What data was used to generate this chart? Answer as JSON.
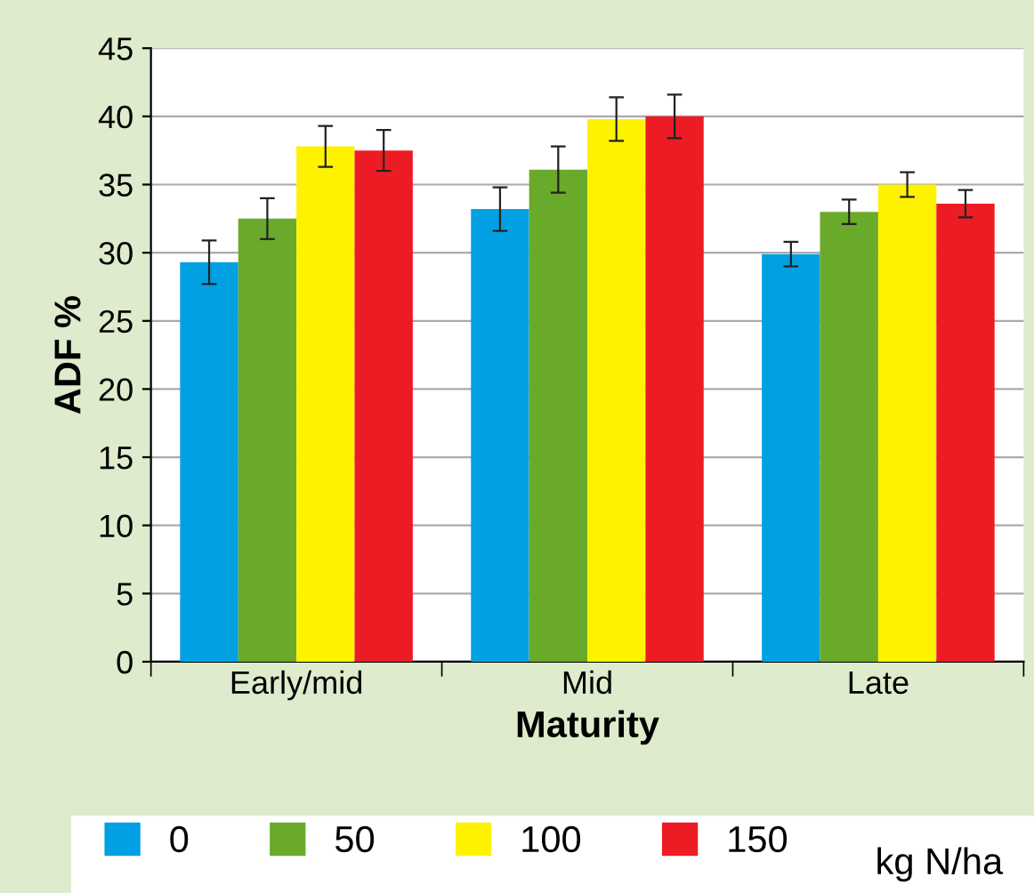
{
  "chart_data": {
    "type": "bar",
    "xlabel": "Maturity",
    "ylabel": "ADF %",
    "legend_title": "kg N/ha",
    "categories": [
      "Early/mid",
      "Mid",
      "Late"
    ],
    "series": [
      {
        "name": "0",
        "color": "#00a0e3",
        "values": [
          29.3,
          33.2,
          29.9
        ],
        "errors": [
          1.6,
          1.6,
          0.9
        ]
      },
      {
        "name": "50",
        "color": "#6aaa2a",
        "values": [
          32.5,
          36.1,
          33.0
        ],
        "errors": [
          1.5,
          1.7,
          0.9
        ]
      },
      {
        "name": "100",
        "color": "#fff200",
        "values": [
          37.8,
          39.8,
          35.0
        ],
        "errors": [
          1.5,
          1.6,
          0.9
        ]
      },
      {
        "name": "150",
        "color": "#ed1c24",
        "values": [
          37.5,
          40.0,
          33.6
        ],
        "errors": [
          1.5,
          1.6,
          1.0
        ]
      }
    ],
    "ylim": [
      0,
      45
    ],
    "yticks": [
      0,
      5,
      10,
      15,
      20,
      25,
      30,
      35,
      40,
      45
    ],
    "grid": "y",
    "legend": "bottom"
  }
}
